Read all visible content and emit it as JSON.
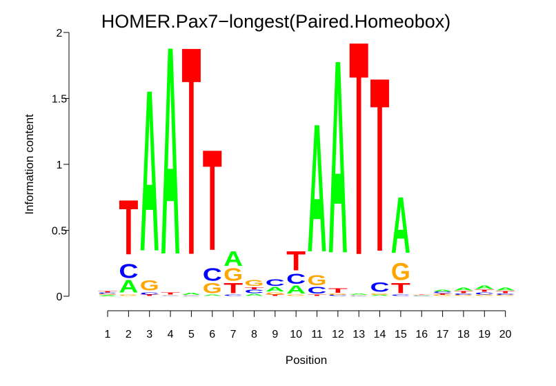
{
  "chart_data": {
    "type": "sequence-logo",
    "title": "HOMER.Pax7−longest(Paired.Homeobox)",
    "xlabel": "Position",
    "ylabel": "Information content",
    "ylim": [
      0,
      2
    ],
    "yticks": [
      "0",
      "0.5",
      "1",
      "1.5",
      "2"
    ],
    "xticks": [
      "1",
      "2",
      "3",
      "4",
      "5",
      "6",
      "7",
      "8",
      "9",
      "10",
      "11",
      "12",
      "13",
      "14",
      "15",
      "16",
      "17",
      "18",
      "19",
      "20"
    ],
    "colors": {
      "A": "#00ff00",
      "C": "#0000ff",
      "G": "#ffa500",
      "T": "#ff0000"
    },
    "positions": [
      {
        "pos": 1,
        "letters": [
          {
            "b": "A",
            "h": 0.008
          },
          {
            "b": "G",
            "h": 0.008
          },
          {
            "b": "C",
            "h": 0.01
          },
          {
            "b": "T",
            "h": 0.01
          }
        ]
      },
      {
        "pos": 2,
        "letters": [
          {
            "b": "G",
            "h": 0.01
          },
          {
            "b": "A",
            "h": 0.11
          },
          {
            "b": "C",
            "h": 0.12
          },
          {
            "b": "T",
            "h": 0.48
          }
        ]
      },
      {
        "pos": 3,
        "letters": [
          {
            "b": "T",
            "h": 0.01
          },
          {
            "b": "C",
            "h": 0.02
          },
          {
            "b": "G",
            "h": 0.09
          },
          {
            "b": "A",
            "h": 1.41
          }
        ]
      },
      {
        "pos": 4,
        "letters": [
          {
            "b": "C",
            "h": 0.005
          },
          {
            "b": "G",
            "h": 0.005
          },
          {
            "b": "T",
            "h": 0.02
          },
          {
            "b": "A",
            "h": 1.82
          }
        ]
      },
      {
        "pos": 5,
        "letters": [
          {
            "b": "G",
            "h": 0.003
          },
          {
            "b": "C",
            "h": 0.005
          },
          {
            "b": "A",
            "h": 0.02
          },
          {
            "b": "T",
            "h": 1.82
          }
        ]
      },
      {
        "pos": 6,
        "letters": [
          {
            "b": "A",
            "h": 0.01
          },
          {
            "b": "G",
            "h": 0.09
          },
          {
            "b": "C",
            "h": 0.11
          },
          {
            "b": "T",
            "h": 0.88
          }
        ]
      },
      {
        "pos": 7,
        "letters": [
          {
            "b": "C",
            "h": 0.01
          },
          {
            "b": "T",
            "h": 0.09
          },
          {
            "b": "G",
            "h": 0.11
          },
          {
            "b": "A",
            "h": 0.13
          }
        ]
      },
      {
        "pos": 8,
        "letters": [
          {
            "b": "A",
            "h": 0.02
          },
          {
            "b": "C",
            "h": 0.03
          },
          {
            "b": "T",
            "h": 0.02
          },
          {
            "b": "G",
            "h": 0.05
          }
        ]
      },
      {
        "pos": 9,
        "letters": [
          {
            "b": "T",
            "h": 0.01
          },
          {
            "b": "G",
            "h": 0.02
          },
          {
            "b": "A",
            "h": 0.04
          },
          {
            "b": "C",
            "h": 0.06
          }
        ]
      },
      {
        "pos": 10,
        "letters": [
          {
            "b": "G",
            "h": 0.01
          },
          {
            "b": "A",
            "h": 0.07
          },
          {
            "b": "C",
            "h": 0.09
          },
          {
            "b": "T",
            "h": 0.17
          }
        ]
      },
      {
        "pos": 11,
        "letters": [
          {
            "b": "T",
            "h": 0.01
          },
          {
            "b": "C",
            "h": 0.06
          },
          {
            "b": "G",
            "h": 0.09
          },
          {
            "b": "A",
            "h": 1.12
          }
        ]
      },
      {
        "pos": 12,
        "letters": [
          {
            "b": "C",
            "h": 0.01
          },
          {
            "b": "G",
            "h": 0.01
          },
          {
            "b": "T",
            "h": 0.04
          },
          {
            "b": "A",
            "h": 1.69
          }
        ]
      },
      {
        "pos": 13,
        "letters": [
          {
            "b": "G",
            "h": 0.003
          },
          {
            "b": "C",
            "h": 0.005
          },
          {
            "b": "A",
            "h": 0.01
          },
          {
            "b": "T",
            "h": 1.87
          }
        ]
      },
      {
        "pos": 14,
        "letters": [
          {
            "b": "A",
            "h": 0.01
          },
          {
            "b": "G",
            "h": 0.01
          },
          {
            "b": "C",
            "h": 0.08
          },
          {
            "b": "T",
            "h": 1.52
          }
        ]
      },
      {
        "pos": 15,
        "letters": [
          {
            "b": "C",
            "h": 0.01
          },
          {
            "b": "T",
            "h": 0.09
          },
          {
            "b": "G",
            "h": 0.15
          },
          {
            "b": "A",
            "h": 0.49
          }
        ]
      },
      {
        "pos": 16,
        "letters": [
          {
            "b": "A",
            "h": 0.003
          },
          {
            "b": "C",
            "h": 0.003
          },
          {
            "b": "G",
            "h": 0.003
          },
          {
            "b": "T",
            "h": 0.003
          }
        ]
      },
      {
        "pos": 17,
        "letters": [
          {
            "b": "G",
            "h": 0.01
          },
          {
            "b": "T",
            "h": 0.01
          },
          {
            "b": "C",
            "h": 0.015
          },
          {
            "b": "A",
            "h": 0.015
          }
        ]
      },
      {
        "pos": 18,
        "letters": [
          {
            "b": "G",
            "h": 0.01
          },
          {
            "b": "C",
            "h": 0.01
          },
          {
            "b": "T",
            "h": 0.02
          },
          {
            "b": "A",
            "h": 0.025
          }
        ]
      },
      {
        "pos": 19,
        "letters": [
          {
            "b": "G",
            "h": 0.01
          },
          {
            "b": "C",
            "h": 0.02
          },
          {
            "b": "T",
            "h": 0.02
          },
          {
            "b": "A",
            "h": 0.03
          }
        ]
      },
      {
        "pos": 20,
        "letters": [
          {
            "b": "G",
            "h": 0.01
          },
          {
            "b": "C",
            "h": 0.01
          },
          {
            "b": "T",
            "h": 0.02
          },
          {
            "b": "A",
            "h": 0.025
          }
        ]
      }
    ]
  }
}
